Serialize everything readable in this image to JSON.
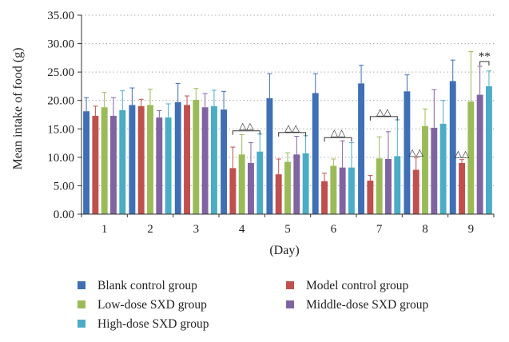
{
  "chart_data": {
    "type": "bar",
    "ylabel": "Mean intake of food (g)",
    "xlabel": "(Day)",
    "ylim": [
      0,
      35
    ],
    "yticks": [
      "0.00",
      "5.00",
      "10.00",
      "15.00",
      "20.00",
      "25.00",
      "30.00",
      "35.00"
    ],
    "grid": "horizontal dotted",
    "legend_placement": "bottom",
    "categories": [
      "1",
      "2",
      "3",
      "4",
      "5",
      "6",
      "7",
      "8",
      "9"
    ],
    "series": [
      {
        "name": "Blank control group",
        "color": "#3f6fb5",
        "values": [
          18.1,
          19.2,
          19.7,
          18.4,
          20.4,
          21.3,
          23.0,
          21.6,
          23.4
        ],
        "errors": [
          2.4,
          3.0,
          3.3,
          3.2,
          4.3,
          3.4,
          3.2,
          2.9,
          3.7
        ]
      },
      {
        "name": "Model control group",
        "color": "#c0504d",
        "values": [
          17.3,
          19.0,
          19.2,
          8.1,
          7.0,
          5.8,
          5.9,
          7.8,
          9.0
        ],
        "errors": [
          1.7,
          1.2,
          1.6,
          3.7,
          2.7,
          1.4,
          0.9,
          2.1,
          0.6
        ]
      },
      {
        "name": "Low-dose SXD group",
        "color": "#9bbb59",
        "values": [
          18.8,
          19.2,
          20.1,
          10.5,
          9.2,
          8.5,
          9.8,
          15.5,
          19.8
        ],
        "errors": [
          2.6,
          2.8,
          2.0,
          3.5,
          1.6,
          1.2,
          3.8,
          3.0,
          8.8
        ]
      },
      {
        "name": "Middle-dose SXD group",
        "color": "#8064a2",
        "values": [
          17.3,
          17.0,
          18.8,
          9.0,
          10.5,
          8.2,
          9.7,
          15.2,
          21.0
        ],
        "errors": [
          3.2,
          1.2,
          2.4,
          3.6,
          3.2,
          4.7,
          4.8,
          6.7,
          5.0
        ]
      },
      {
        "name": "High-dose SXD group",
        "color": "#4bacc6",
        "values": [
          18.3,
          17.0,
          19.0,
          11.0,
          10.7,
          8.2,
          10.2,
          15.9,
          22.5
        ],
        "errors": [
          3.4,
          2.4,
          2.8,
          3.1,
          3.1,
          4.4,
          6.4,
          4.1,
          2.7
        ]
      }
    ],
    "annotations": [
      {
        "day": "4",
        "text": "△△",
        "type": "bracket",
        "from_series": 1,
        "to_series": 4
      },
      {
        "day": "5",
        "text": "△△",
        "type": "bracket",
        "from_series": 1,
        "to_series": 4
      },
      {
        "day": "6",
        "text": "△△",
        "type": "bracket",
        "from_series": 1,
        "to_series": 4
      },
      {
        "day": "7",
        "text": "△△",
        "type": "bracket",
        "from_series": 1,
        "to_series": 4
      },
      {
        "day": "8",
        "text": "△△",
        "type": "above",
        "series": 1
      },
      {
        "day": "9",
        "text": "△△",
        "type": "above",
        "series": 1
      },
      {
        "day": "9",
        "text": "**",
        "type": "bracket",
        "from_series": 3,
        "to_series": 4
      }
    ]
  }
}
